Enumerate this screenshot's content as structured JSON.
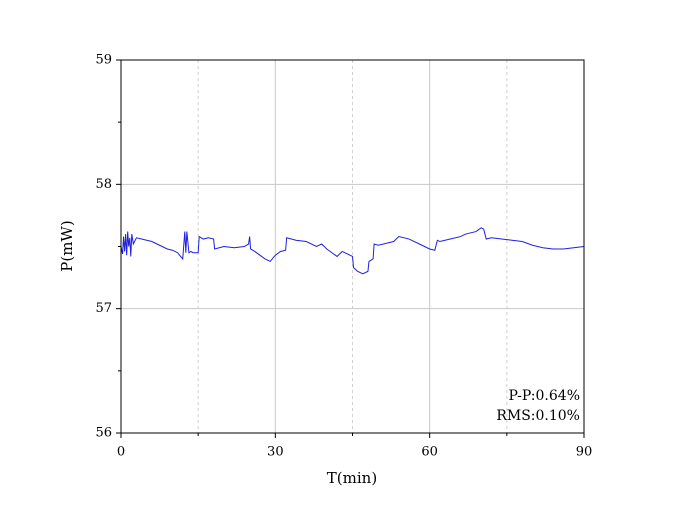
{
  "chart_data": {
    "type": "line",
    "xlabel": "T(min)",
    "ylabel": "P(mW)",
    "annotations": [
      "P-P:0.64%",
      "RMS:0.10%"
    ],
    "x": [
      0,
      0.3,
      0.5,
      0.7,
      0.9,
      1.1,
      1.3,
      1.5,
      1.7,
      1.9,
      2.1,
      2.4,
      3,
      4,
      5,
      6,
      7,
      8,
      9,
      10,
      11,
      12,
      12.4,
      12.6,
      12.8,
      13.2,
      13.6,
      14,
      15,
      15.2,
      16,
      17,
      18,
      18.2,
      20,
      22,
      24,
      24.8,
      25,
      25.2,
      26,
      27,
      28,
      29,
      30,
      31,
      32,
      32.2,
      34,
      36,
      38,
      39,
      40,
      41,
      42,
      43,
      44,
      45,
      45.2,
      46,
      47,
      48,
      48.2,
      49,
      49.2,
      50,
      52,
      53,
      54,
      56,
      58,
      60,
      61,
      61.5,
      62,
      64,
      66,
      67,
      68,
      69,
      70,
      70.5,
      71,
      72,
      74,
      76,
      78,
      80,
      82,
      84,
      86,
      88,
      90
    ],
    "series": [
      {
        "name": "P",
        "color": "#1f1fe0",
        "values": [
          57.5,
          57.44,
          57.58,
          57.46,
          57.6,
          57.43,
          57.62,
          57.5,
          57.57,
          57.42,
          57.6,
          57.52,
          57.57,
          57.56,
          57.55,
          57.54,
          57.52,
          57.5,
          57.48,
          57.47,
          57.45,
          57.4,
          57.62,
          57.45,
          57.62,
          57.45,
          57.46,
          57.45,
          57.45,
          57.58,
          57.56,
          57.57,
          57.56,
          57.48,
          57.5,
          57.49,
          57.5,
          57.52,
          57.58,
          57.48,
          57.46,
          57.43,
          57.4,
          57.38,
          57.43,
          57.46,
          57.47,
          57.57,
          57.55,
          57.54,
          57.5,
          57.52,
          57.48,
          57.45,
          57.42,
          57.46,
          57.44,
          57.42,
          57.33,
          57.3,
          57.28,
          57.3,
          57.38,
          57.4,
          57.52,
          57.51,
          57.53,
          57.54,
          57.58,
          57.56,
          57.52,
          57.48,
          57.47,
          57.55,
          57.54,
          57.56,
          57.58,
          57.6,
          57.61,
          57.62,
          57.65,
          57.64,
          57.56,
          57.57,
          57.56,
          57.55,
          57.54,
          57.51,
          57.49,
          57.48,
          57.48,
          57.49,
          57.5
        ]
      }
    ],
    "xlim": [
      0,
      90
    ],
    "xticks": [
      0,
      30,
      60,
      90
    ],
    "xminorticks": [
      15,
      45,
      75
    ],
    "ylim": [
      56,
      59
    ],
    "yticks": [
      56,
      57,
      58,
      59
    ],
    "yminorticks": [
      56.5,
      57.5,
      58.5
    ],
    "grid": true
  }
}
